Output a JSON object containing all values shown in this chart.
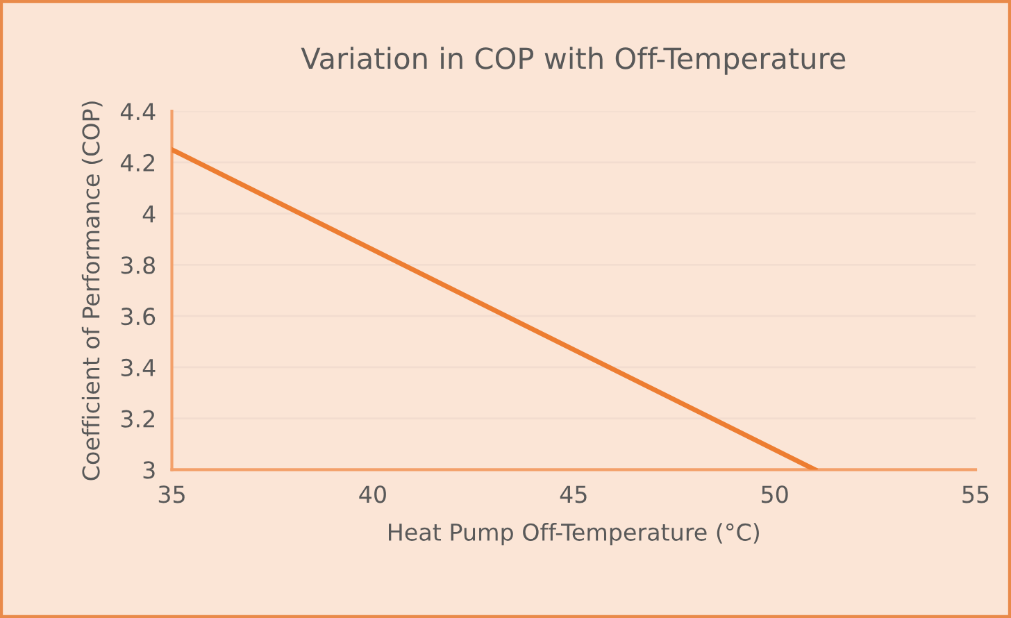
{
  "chart_data": {
    "type": "line",
    "title": "Variation in COP with Off-Temperature",
    "xlabel": "Heat Pump Off-Temperature (°C)",
    "ylabel": "Coefficient of Performance (COP)",
    "x": [
      35,
      51
    ],
    "series": [
      {
        "color": "#ed7d31",
        "values": [
          4.25,
          3.0
        ]
      }
    ],
    "xlim": [
      35,
      55
    ],
    "xticks": [
      35,
      40,
      45,
      50,
      55
    ],
    "ylim": [
      3,
      4.4
    ],
    "yticks": [
      3,
      3.2,
      3.4,
      3.6,
      3.8,
      4,
      4.2,
      4.4
    ],
    "grid": "y",
    "marker": "none",
    "line_style": "solid"
  }
}
